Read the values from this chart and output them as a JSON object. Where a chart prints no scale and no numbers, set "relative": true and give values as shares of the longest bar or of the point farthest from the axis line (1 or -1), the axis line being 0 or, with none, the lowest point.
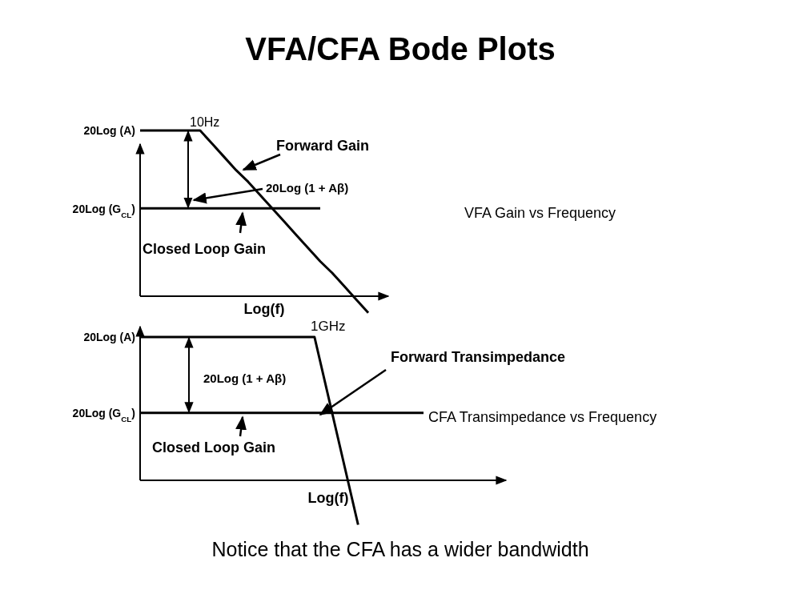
{
  "chart_data": [
    {
      "type": "line",
      "title": "VFA/CFA Bode Plots",
      "xlabel": "Log(f)",
      "relative": true,
      "categories": [
        null,
        null,
        null,
        null,
        null,
        null,
        null,
        null,
        null,
        null,
        null,
        null,
        null,
        null,
        null,
        null,
        null,
        null,
        null,
        null
      ],
      "series": [
        {
          "name": "Forward Gain",
          "color": "#000000",
          "values": [
            1,
            1,
            1,
            1,
            1,
            1,
            0.92,
            0.84,
            0.76,
            0.69,
            0.61,
            0.53,
            0.45,
            0.37,
            0.29,
            0.21,
            0.14,
            0.06,
            -0.02,
            -0.1
          ]
        },
        {
          "name": "Closed Loop Gain",
          "color": "#000000",
          "values": [
            0.53,
            0.53,
            0.53,
            0.53,
            0.53,
            0.53,
            0.53,
            0.53,
            0.53,
            0.53,
            0.53,
            0.53,
            0.53,
            0.53,
            0.53,
            0.53,
            null,
            null,
            null,
            null
          ]
        }
      ],
      "annotations": [
        "20Log (A)",
        "20Log (G$_{CL}$)",
        "10Hz",
        "20Log (1 + Aβ)",
        "VFA Gain vs Frequency"
      ]
    },
    {
      "type": "line",
      "xlabel": "Log(f)",
      "relative": true,
      "categories": [
        null,
        null,
        null,
        null,
        null,
        null,
        null,
        null,
        null,
        null,
        null,
        null,
        null,
        null
      ],
      "series": [
        {
          "name": "Forward Transimpedance",
          "color": "#000000",
          "values": [
            1,
            1,
            1,
            1,
            1,
            1,
            1,
            1,
            1,
            0.345,
            -0.31,
            null,
            null,
            null
          ]
        },
        {
          "name": "Closed Loop Gain",
          "color": "#000000",
          "values": [
            0.47,
            0.47,
            0.47,
            0.47,
            0.47,
            0.47,
            0.47,
            0.47,
            0.47,
            0.47,
            0.47,
            0.47,
            0.47,
            0.47
          ]
        }
      ],
      "annotations": [
        "20Log (A)",
        "20Log (G$_{CL}$)",
        "1GHz",
        "20Log (1 + Aβ)",
        "CFA Transimpedance vs Frequency",
        "Notice that the CFA has a wider bandwidth"
      ]
    }
  ]
}
